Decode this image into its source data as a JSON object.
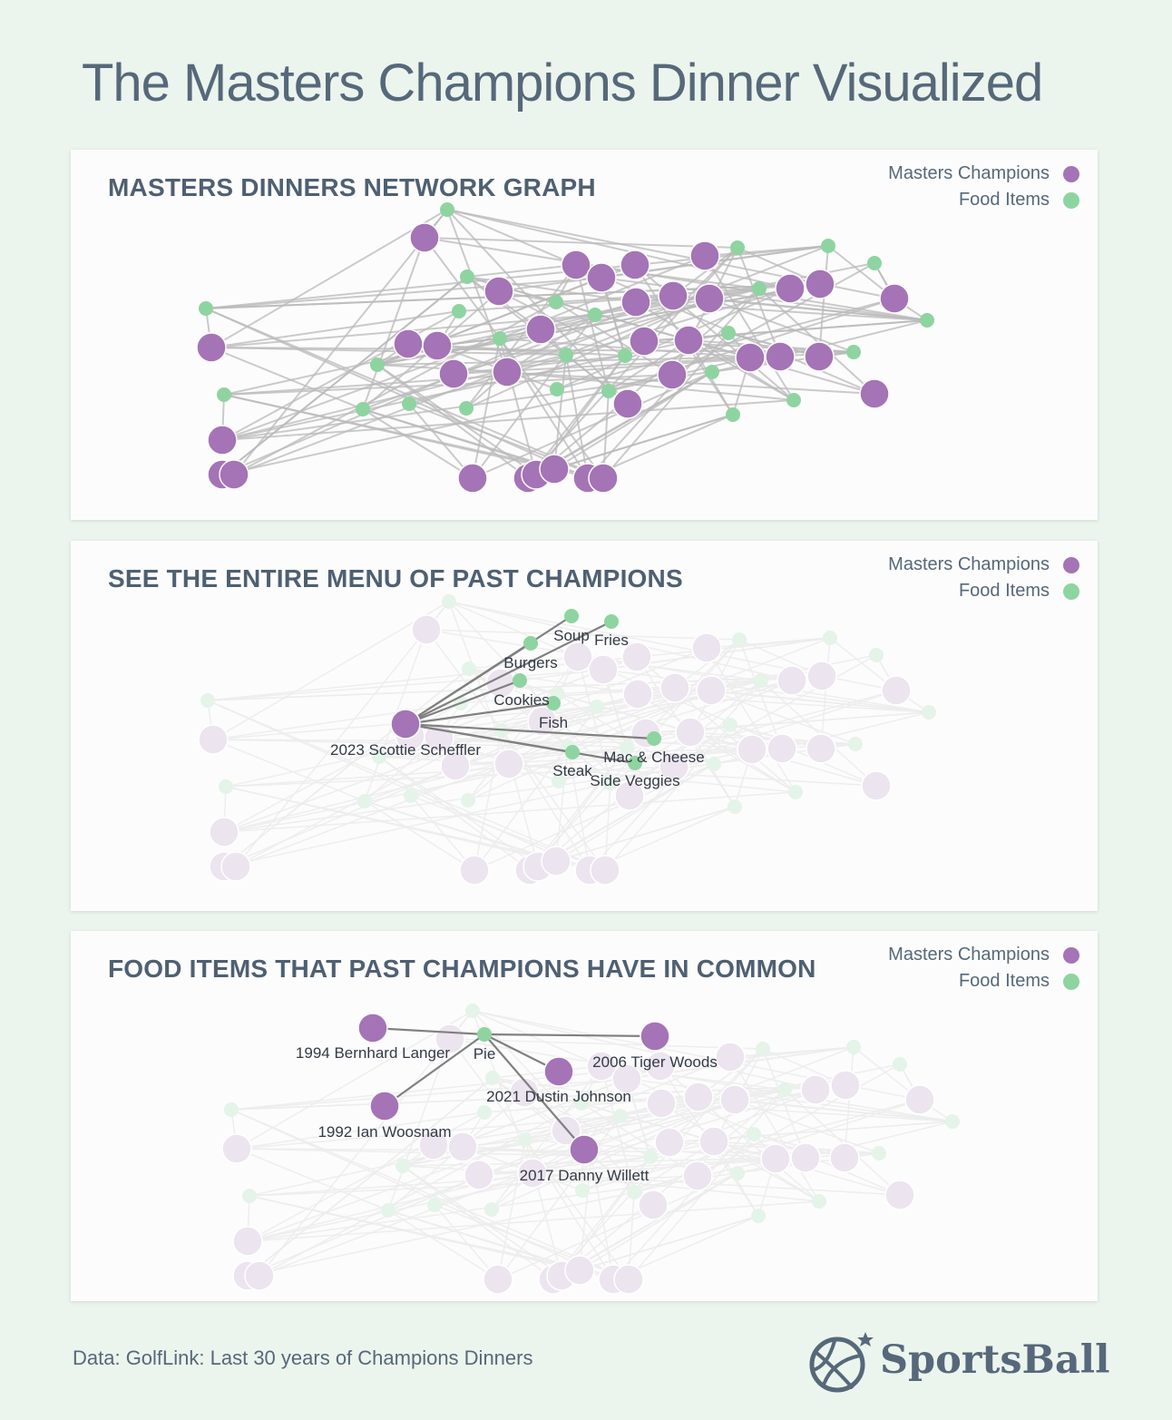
{
  "page_title": "The Masters Champions Dinner Visualized",
  "legend": {
    "champions_label": "Masters Champions",
    "food_label": "Food Items"
  },
  "colors": {
    "background": "#ebf5ed",
    "champion": "#a474b6",
    "food": "#8ed4a0",
    "faded_champion": "#ece4ef",
    "faded_food": "#e4f4e8",
    "text": "#56687a"
  },
  "panels": [
    {
      "title": "MASTERS DINNERS NETWORK GRAPH",
      "mode": "full"
    },
    {
      "title": "SEE THE ENTIRE MENU OF PAST CHAMPIONS",
      "mode": "menu"
    },
    {
      "title": "FOOD ITEMS THAT PAST CHAMPIONS HAVE IN COMMON",
      "mode": "common"
    }
  ],
  "menu_highlight": {
    "champion": "2023 Scottie Scheffler",
    "foods": [
      "Soup",
      "Fries",
      "Burgers",
      "Cookies",
      "Fish",
      "Mac & Cheese",
      "Steak",
      "Side Veggies"
    ]
  },
  "common_highlight": {
    "food": "Pie",
    "champions": [
      "1994 Bernhard Langer",
      "2006 Tiger Woods",
      "2021 Dustin Johnson",
      "1992 Ian Woosnam",
      "2017 Danny Willett"
    ]
  },
  "footer": {
    "source": "Data: GolfLink: Last 30 years of Champions Dinners",
    "brand": "SportsBall"
  }
}
